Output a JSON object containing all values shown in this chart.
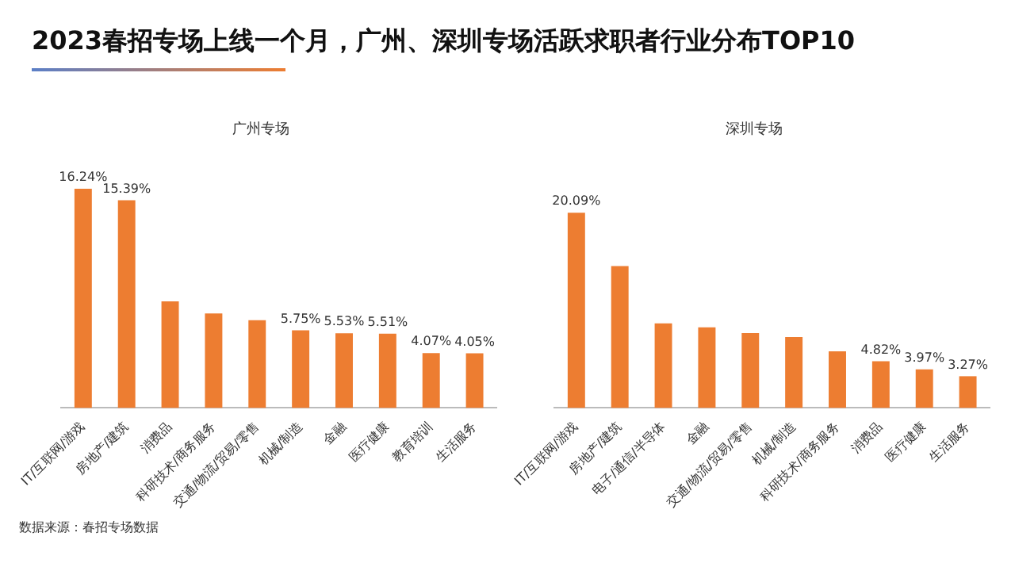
{
  "chart_data": [
    {
      "type": "bar",
      "title": "2023春招专场上线一个月，广州、深圳专场活跃求职者行业分布TOP10",
      "subtitle": "广州专场",
      "annotations": [
        "数据来源：春招专场数据"
      ],
      "categories": [
        "IT/互联网/游戏",
        "房地产/建筑",
        "消费品",
        "科研技术/商务服务",
        "交通/物流/贸易/零售",
        "机械/制造",
        "金融",
        "医疗健康",
        "教育培训",
        "生活服务"
      ],
      "values": [
        16.24,
        15.39,
        7.9,
        7.0,
        6.5,
        5.75,
        5.53,
        5.51,
        4.07,
        4.05
      ],
      "value_labels": [
        "16.24%",
        "15.39%",
        null,
        null,
        null,
        "5.75%",
        "5.53%",
        "5.51%",
        "4.07%",
        "4.05%"
      ],
      "color": "#ed7d31",
      "grid": false,
      "legend": false
    },
    {
      "type": "bar",
      "subtitle": "深圳专场",
      "categories": [
        "IT/互联网/游戏",
        "房地产/建筑",
        "电子/通信/半导体",
        "金融",
        "交通/物流/贸易/零售",
        "机械/制造",
        "科研技术/商务服务",
        "消费品",
        "医疗健康",
        "生活服务"
      ],
      "values": [
        20.09,
        14.6,
        8.7,
        8.3,
        7.7,
        7.3,
        5.83,
        4.82,
        3.97,
        3.27
      ],
      "value_labels": [
        "20.09%",
        null,
        null,
        null,
        null,
        null,
        null,
        "4.82%",
        "3.97%",
        "3.27%"
      ],
      "color": "#ed7d31",
      "grid": false,
      "legend": false
    }
  ]
}
